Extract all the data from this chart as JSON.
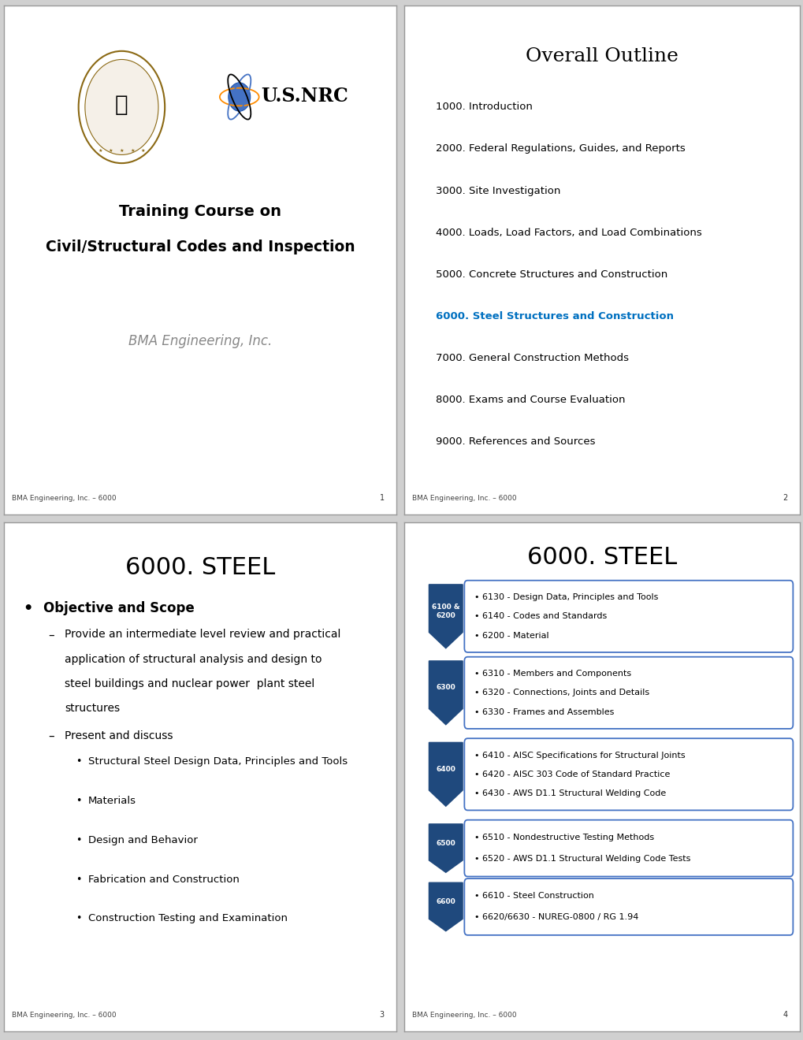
{
  "bg_color": "#d0d0d0",
  "slide_bg": "#ffffff",
  "slide1": {
    "title_line1": "Training Course on",
    "title_line2": "Civil/Structural Codes and Inspection",
    "subtitle": "BMA Engineering, Inc.",
    "footer": "BMA Engineering, Inc. – 6000",
    "page": "1"
  },
  "slide2": {
    "title": "Overall Outline",
    "items": [
      {
        "text": "1000. Introduction",
        "color": "#000000",
        "bold": false
      },
      {
        "text": "2000. Federal Regulations, Guides, and Reports",
        "color": "#000000",
        "bold": false
      },
      {
        "text": "3000. Site Investigation",
        "color": "#000000",
        "bold": false
      },
      {
        "text": "4000. Loads, Load Factors, and Load Combinations",
        "color": "#000000",
        "bold": false
      },
      {
        "text": "5000. Concrete Structures and Construction",
        "color": "#000000",
        "bold": false
      },
      {
        "text": "6000. Steel Structures and Construction",
        "color": "#0070C0",
        "bold": true
      },
      {
        "text": "7000. General Construction Methods",
        "color": "#000000",
        "bold": false
      },
      {
        "text": "8000. Exams and Course Evaluation",
        "color": "#000000",
        "bold": false
      },
      {
        "text": "9000. References and Sources",
        "color": "#000000",
        "bold": false
      }
    ],
    "footer": "BMA Engineering, Inc. – 6000",
    "page": "2"
  },
  "slide3": {
    "title": "6000. STEEL",
    "footer": "BMA Engineering, Inc. – 6000",
    "page": "3"
  },
  "slide4": {
    "title": "6000. STEEL",
    "sections": [
      {
        "label": "6100 &\n6200",
        "items": [
          "6130 - Design Data, Principles and Tools",
          "6140 - Codes and Standards",
          "6200 - Material"
        ]
      },
      {
        "label": "6300",
        "items": [
          "6310 - Members and Components",
          "6320 - Connections, Joints and Details",
          "6330 - Frames and Assembles"
        ]
      },
      {
        "label": "6400",
        "items": [
          "6410 - AISC Specifications for Structural Joints",
          "6420 - AISC 303 Code of Standard Practice",
          "6430 - AWS D1.1 Structural Welding Code"
        ]
      },
      {
        "label": "6500",
        "items": [
          "6510 - Nondestructive Testing Methods",
          "6520 - AWS D1.1 Structural Welding Code Tests"
        ]
      },
      {
        "label": "6600",
        "items": [
          "6610 - Steel Construction",
          "6620/6630 - NUREG-0800 / RG 1.94"
        ]
      }
    ],
    "footer": "BMA Engineering, Inc. – 6000",
    "page": "4"
  }
}
